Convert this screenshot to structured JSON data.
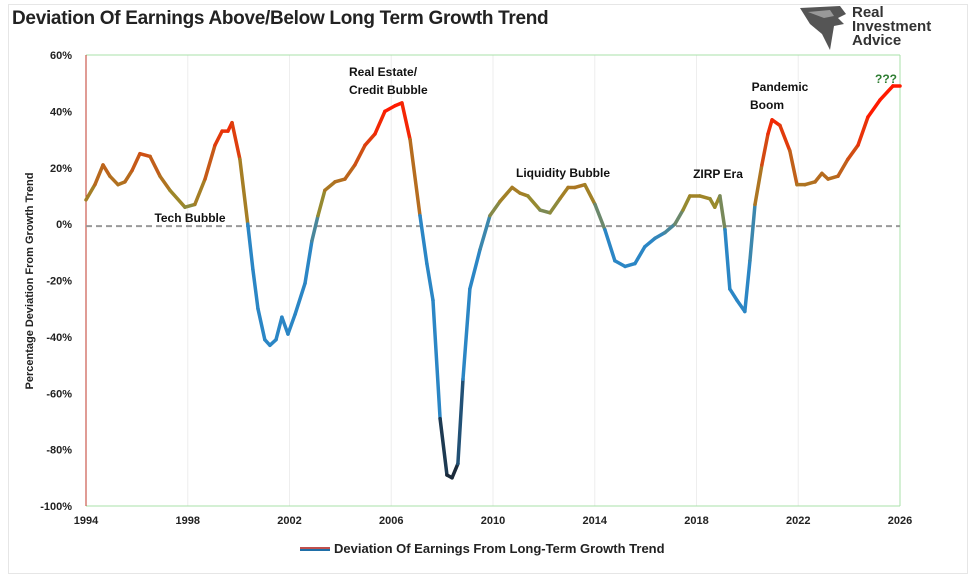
{
  "chart_data": {
    "type": "line",
    "title": "Deviation Of Earnings Above/Below Long Term Growth Trend",
    "ylabel": "Percentage Deviation From Growth Trend",
    "xlabel": "",
    "xlim": [
      1994,
      2026
    ],
    "ylim": [
      -100,
      60
    ],
    "x_ticks": [
      "1994",
      "1998",
      "2002",
      "2006",
      "2010",
      "2014",
      "2018",
      "2022",
      "2026"
    ],
    "y_ticks": [
      "60%",
      "40%",
      "20%",
      "0%",
      "-20%",
      "-40%",
      "-60%",
      "-80%",
      "-100%"
    ],
    "grid": "vertical",
    "reference_line": {
      "y": 0,
      "style": "dashed",
      "color": "#999999"
    },
    "legend": {
      "position": "bottom",
      "label": "Deviation Of Earnings From Long-Term Growth Trend"
    },
    "colors": {
      "high": "#ff1a00",
      "mid": "#9a8a2a",
      "low": "#2b86c5",
      "extreme_low": "#1b2a3a"
    },
    "annotations": [
      {
        "text": "Tech Bubble"
      },
      {
        "text": "Real Estate/"
      },
      {
        "text": "Credit Bubble"
      },
      {
        "text": "Liquidity Bubble"
      },
      {
        "text": "ZIRP Era"
      },
      {
        "text": "Pandemic"
      },
      {
        "text": "Boom"
      },
      {
        "text": "???"
      }
    ],
    "series": [
      {
        "name": "Deviation Of Earnings From Long-Term Growth Trend",
        "x": [
          1994.0,
          1994.35,
          1994.67,
          1994.94,
          1995.26,
          1995.53,
          1995.81,
          1996.12,
          1996.52,
          1996.91,
          1997.3,
          1997.89,
          1998.28,
          1998.68,
          1999.07,
          1999.35,
          1999.58,
          1999.74,
          2000.05,
          2000.36,
          2000.56,
          2000.76,
          2001.03,
          2001.23,
          2001.47,
          2001.7,
          2001.94,
          2002.22,
          2002.61,
          2002.88,
          2003.12,
          2003.39,
          2003.79,
          2004.18,
          2004.57,
          2004.97,
          2005.36,
          2005.75,
          2006.15,
          2006.42,
          2006.74,
          2007.13,
          2007.4,
          2007.64,
          2007.92,
          2008.19,
          2008.39,
          2008.62,
          2008.82,
          2009.09,
          2009.49,
          2009.88,
          2010.27,
          2010.75,
          2011.06,
          2011.37,
          2011.85,
          2012.24,
          2012.63,
          2012.95,
          2013.22,
          2013.61,
          2014.01,
          2014.4,
          2014.79,
          2015.19,
          2015.58,
          2015.97,
          2016.37,
          2016.76,
          2017.15,
          2017.47,
          2017.74,
          2018.13,
          2018.53,
          2018.72,
          2018.92,
          2019.12,
          2019.31,
          2019.59,
          2019.9,
          2020.1,
          2020.3,
          2020.57,
          2020.81,
          2020.97,
          2021.28,
          2021.67,
          2021.95,
          2022.26,
          2022.66,
          2022.93,
          2023.17,
          2023.56,
          2023.95,
          2024.35,
          2024.74,
          2025.21,
          2025.72,
          2026.0
        ],
        "y": [
          8.6,
          14,
          21,
          17,
          14,
          15,
          19,
          25,
          24,
          17,
          12,
          6,
          7,
          16,
          28,
          33,
          33,
          36,
          23,
          0,
          -16,
          -30,
          -41,
          -43,
          -41,
          -33,
          -39,
          -32,
          -21,
          -6,
          3,
          12,
          15,
          16,
          21,
          28,
          32,
          40,
          42,
          43,
          30,
          3,
          -14,
          -27,
          -69,
          -89,
          -90,
          -85,
          -55,
          -23,
          -9,
          3,
          8,
          13,
          11,
          10,
          5,
          4,
          9,
          13,
          13,
          14,
          7,
          -2,
          -13,
          -15,
          -14,
          -8,
          -5,
          -3,
          0,
          5,
          10,
          10,
          9,
          6,
          10,
          -2,
          -23,
          -27,
          -31,
          -13,
          7,
          21,
          32,
          37,
          35,
          26,
          14,
          14,
          15,
          18,
          16,
          17,
          23,
          28,
          38,
          44,
          49,
          49
        ]
      }
    ]
  }
}
